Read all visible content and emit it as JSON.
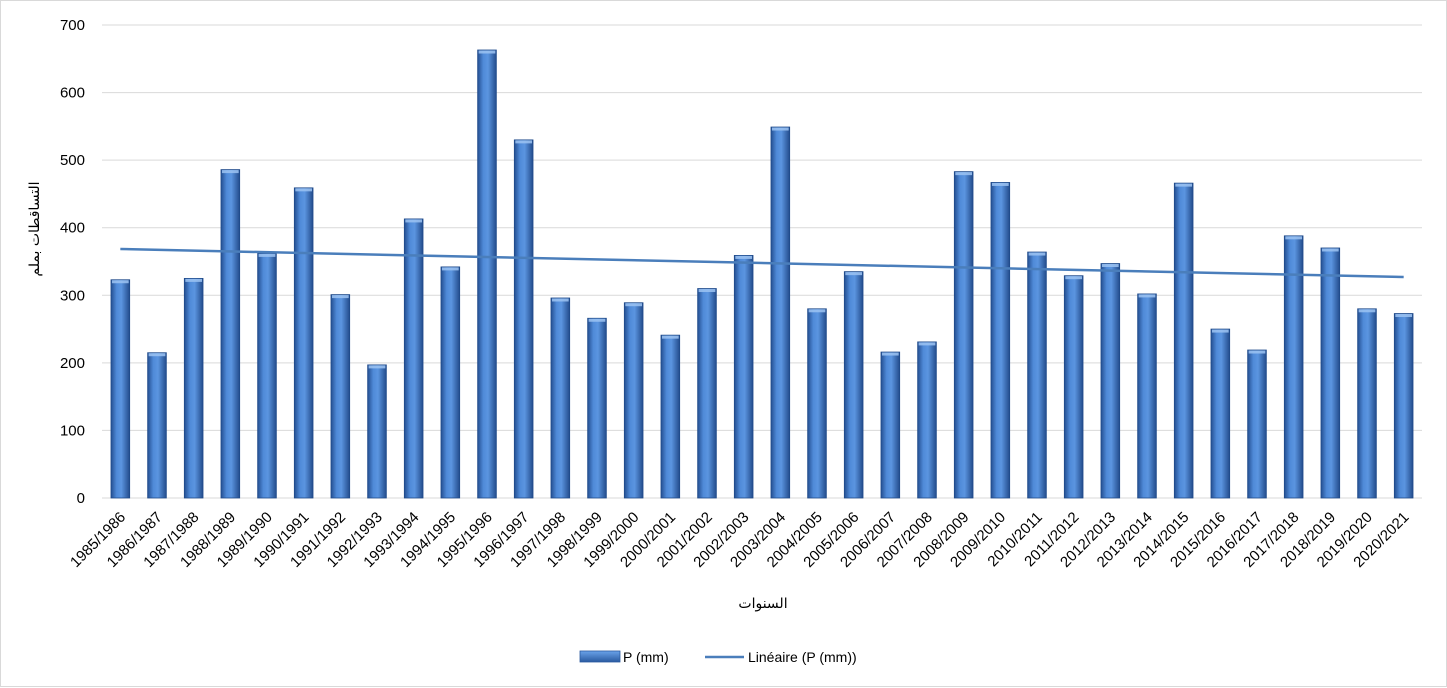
{
  "chart_data": {
    "type": "bar",
    "xlabel": "السنوات",
    "ylabel": "التساقطات بملم",
    "ylim": [
      0,
      700
    ],
    "yticks": [
      0,
      100,
      200,
      300,
      400,
      500,
      600,
      700
    ],
    "grid": true,
    "legend_position": "bottom",
    "categories": [
      "1985/1986",
      "1986/1987",
      "1987/1988",
      "1988/1989",
      "1989/1990",
      "1990/1991",
      "1991/1992",
      "1992/1993",
      "1993/1994",
      "1994/1995",
      "1995/1996",
      "1996/1997",
      "1997/1998",
      "1998/1999",
      "1999/2000",
      "2000/2001",
      "2001/2002",
      "2002/2003",
      "2003/2004",
      "2004/2005",
      "2005/2006",
      "2006/2007",
      "2007/2008",
      "2008/2009",
      "2009/2010",
      "2010/2011",
      "2011/2012",
      "2012/2013",
      "2013/2014",
      "2014/2015",
      "2015/2016",
      "2016/2017",
      "2017/2018",
      "2018/2019",
      "2019/2020",
      "2020/2021"
    ],
    "series": [
      {
        "name": "P (mm)",
        "type": "bar",
        "color": "#3f78c9",
        "values": [
          323,
          215,
          325,
          486,
          362,
          459,
          301,
          197,
          413,
          342,
          663,
          530,
          296,
          266,
          289,
          241,
          310,
          359,
          549,
          280,
          335,
          216,
          231,
          483,
          467,
          364,
          329,
          347,
          302,
          466,
          250,
          219,
          388,
          370,
          280,
          273
        ]
      },
      {
        "name": "Linéaire (P (mm))",
        "type": "trendline",
        "color": "#4a7ebb",
        "start": 368.5,
        "end": 327.0
      }
    ]
  }
}
